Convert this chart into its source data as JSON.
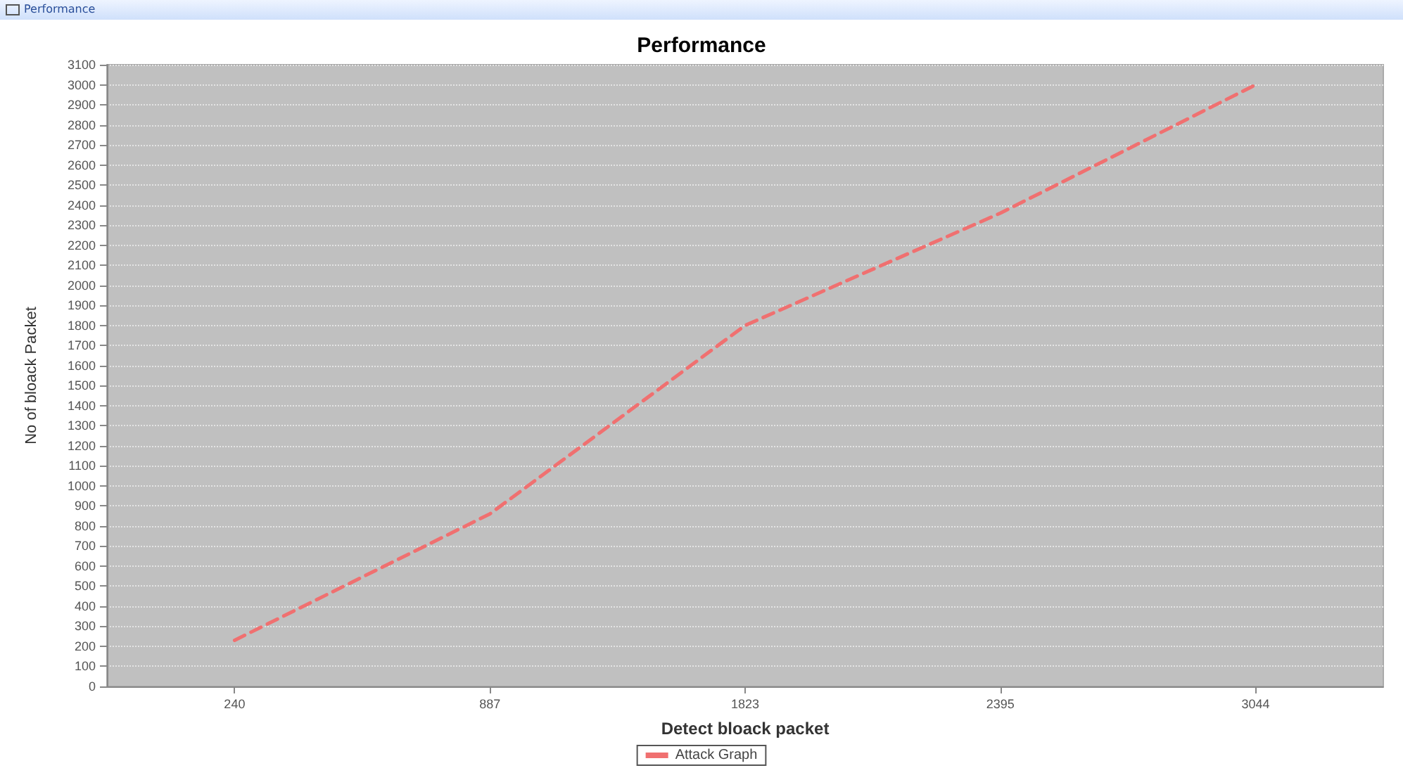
{
  "chart_data": {
    "type": "line",
    "title": "Performance",
    "xlabel": "Detect bloack packet",
    "ylabel": "No of bloack Packet",
    "annotations": [
      "Performance"
    ],
    "categories": [
      "240",
      "887",
      "1823",
      "2395",
      "3044"
    ],
    "series": [
      {
        "name": "Attack Graph",
        "color": "#f07070",
        "values": [
          230,
          860,
          1800,
          2360,
          3000
        ]
      }
    ],
    "ylim": [
      0,
      3100
    ],
    "yticks": [
      0,
      100,
      200,
      300,
      400,
      500,
      600,
      700,
      800,
      900,
      1000,
      1100,
      1200,
      1300,
      1400,
      1500,
      1600,
      1700,
      1800,
      1900,
      2000,
      2100,
      2200,
      2300,
      2400,
      2500,
      2600,
      2700,
      2800,
      2900,
      3000,
      3100
    ],
    "grid": "y",
    "legend": "bottom",
    "marker": "none",
    "line_style": "dashed"
  }
}
